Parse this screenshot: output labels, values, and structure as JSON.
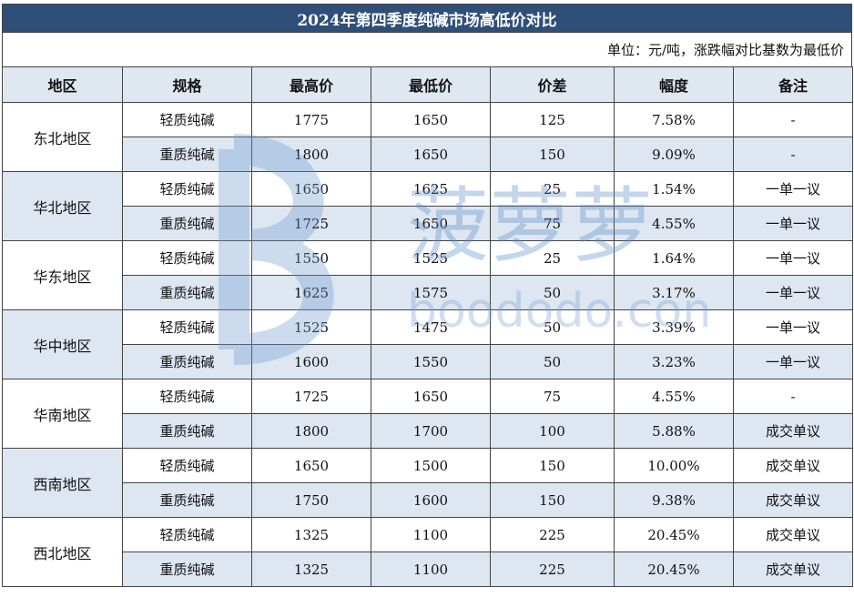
{
  "title": "2024年第四季度纯碱市场高低价对比",
  "unit_note": "单位：元/吨，涨跌幅对比基数为最低价",
  "headers": [
    "地区",
    "规格",
    "最高价",
    "最低价",
    "价差",
    "幅度",
    "备注"
  ],
  "watermark": {
    "text": "boododo.com",
    "chars": "菠萝萝"
  },
  "groups": [
    {
      "region": "东北地区",
      "rows": [
        {
          "spec": "轻质纯碱",
          "high": "1775",
          "low": "1650",
          "diff": "125",
          "pct": "7.58%",
          "note": "-"
        },
        {
          "spec": "重质纯碱",
          "high": "1800",
          "low": "1650",
          "diff": "150",
          "pct": "9.09%",
          "note": "-"
        }
      ]
    },
    {
      "region": "华北地区",
      "rows": [
        {
          "spec": "轻质纯碱",
          "high": "1650",
          "low": "1625",
          "diff": "25",
          "pct": "1.54%",
          "note": "一单一议"
        },
        {
          "spec": "重质纯碱",
          "high": "1725",
          "low": "1650",
          "diff": "75",
          "pct": "4.55%",
          "note": "一单一议"
        }
      ]
    },
    {
      "region": "华东地区",
      "rows": [
        {
          "spec": "轻质纯碱",
          "high": "1550",
          "low": "1525",
          "diff": "25",
          "pct": "1.64%",
          "note": "一单一议"
        },
        {
          "spec": "重质纯碱",
          "high": "1625",
          "low": "1575",
          "diff": "50",
          "pct": "3.17%",
          "note": "一单一议"
        }
      ]
    },
    {
      "region": "华中地区",
      "rows": [
        {
          "spec": "轻质纯碱",
          "high": "1525",
          "low": "1475",
          "diff": "50",
          "pct": "3.39%",
          "note": "一单一议"
        },
        {
          "spec": "重质纯碱",
          "high": "1600",
          "low": "1550",
          "diff": "50",
          "pct": "3.23%",
          "note": "一单一议"
        }
      ]
    },
    {
      "region": "华南地区",
      "rows": [
        {
          "spec": "轻质纯碱",
          "high": "1725",
          "low": "1650",
          "diff": "75",
          "pct": "4.55%",
          "note": "-"
        },
        {
          "spec": "重质纯碱",
          "high": "1800",
          "low": "1700",
          "diff": "100",
          "pct": "5.88%",
          "note": "成交单议"
        }
      ]
    },
    {
      "region": "西南地区",
      "rows": [
        {
          "spec": "轻质纯碱",
          "high": "1650",
          "low": "1500",
          "diff": "150",
          "pct": "10.00%",
          "note": "成交单议"
        },
        {
          "spec": "重质纯碱",
          "high": "1750",
          "low": "1600",
          "diff": "150",
          "pct": "9.38%",
          "note": "成交单议"
        }
      ]
    },
    {
      "region": "西北地区",
      "rows": [
        {
          "spec": "轻质纯碱",
          "high": "1325",
          "low": "1100",
          "diff": "225",
          "pct": "20.45%",
          "note": "成交单议"
        },
        {
          "spec": "重质纯碱",
          "high": "1325",
          "low": "1100",
          "diff": "225",
          "pct": "20.45%",
          "note": "成交单议"
        }
      ]
    }
  ]
}
